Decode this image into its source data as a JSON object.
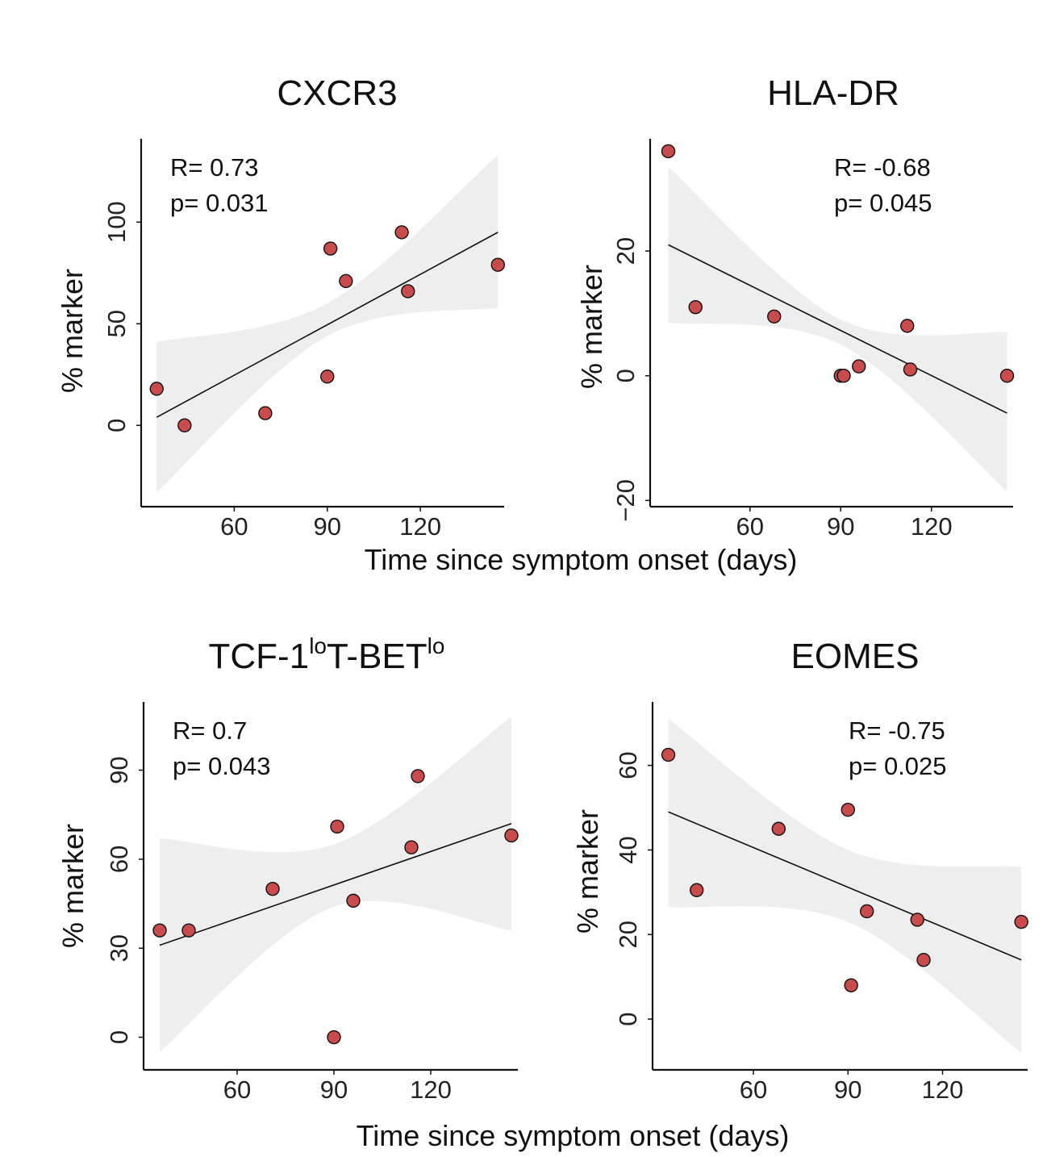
{
  "xlabel": "Time since symptom onset (days)",
  "chart_data": [
    {
      "type": "scatter",
      "title": "CXCR3",
      "title_sup": [],
      "ylabel": "% marker",
      "annotation": [
        "R= 0.73",
        "p= 0.031"
      ],
      "annotation_side": "left",
      "xlim": [
        30,
        147
      ],
      "ylim": [
        -40,
        141
      ],
      "xticks": [
        60,
        90,
        120
      ],
      "yticks": [
        0,
        50,
        100
      ],
      "points": {
        "x": [
          35,
          44,
          70,
          90,
          91,
          96,
          114,
          116,
          145
        ],
        "y": [
          18,
          0,
          6,
          24,
          87,
          71,
          95,
          66,
          79
        ]
      },
      "fit": {
        "x": [
          35,
          145
        ],
        "y": [
          4,
          95
        ]
      },
      "band": {
        "x": [
          35,
          90,
          145
        ],
        "upper": [
          41,
          60,
          133
        ],
        "lower": [
          -33,
          44,
          58
        ]
      },
      "marker_color": "#c94b4b",
      "band_color": "#eeeeee"
    },
    {
      "type": "scatter",
      "title": "HLA-DR",
      "title_sup": [],
      "ylabel": "% marker",
      "annotation": [
        "R= -0.68",
        "p= 0.045"
      ],
      "annotation_side": "right",
      "xlim": [
        27,
        147
      ],
      "ylim": [
        -21,
        38
      ],
      "xticks": [
        60,
        90,
        120
      ],
      "yticks": [
        20,
        0,
        -20
      ],
      "ytick_labels": [
        "20",
        "0",
        "−20"
      ],
      "points": {
        "x": [
          33,
          42,
          68,
          90,
          91,
          96,
          112,
          113,
          145
        ],
        "y": [
          36,
          11,
          9.5,
          0,
          0,
          1.5,
          8,
          1,
          0
        ]
      },
      "fit": {
        "x": [
          33,
          145
        ],
        "y": [
          21,
          -6
        ]
      },
      "band": {
        "x": [
          33,
          90,
          145
        ],
        "upper": [
          33.5,
          9,
          7
        ],
        "lower": [
          8.5,
          5,
          -18.5
        ]
      },
      "marker_color": "#c94b4b",
      "band_color": "#eeeeee"
    },
    {
      "type": "scatter",
      "title": "TCF-1",
      "title_sup": [
        [
          "lo",
          "T-BET"
        ],
        [
          "lo",
          ""
        ]
      ],
      "ylabel": "% marker",
      "annotation": [
        "R= 0.7",
        "p= 0.043"
      ],
      "annotation_side": "left",
      "xlim": [
        31,
        147
      ],
      "ylim": [
        -11,
        113
      ],
      "xticks": [
        60,
        90,
        120
      ],
      "yticks": [
        0,
        30,
        60,
        90
      ],
      "points": {
        "x": [
          36,
          45,
          71,
          90,
          91,
          96,
          114,
          116,
          145
        ],
        "y": [
          36,
          36,
          50,
          0,
          71,
          46,
          64,
          88,
          68
        ]
      },
      "fit": {
        "x": [
          36,
          145
        ],
        "y": [
          31,
          72
        ]
      },
      "band": {
        "x": [
          36,
          90,
          145
        ],
        "upper": [
          67,
          65,
          108
        ],
        "lower": [
          -5,
          44,
          36
        ]
      },
      "marker_color": "#c94b4b",
      "band_color": "#eeeeee"
    },
    {
      "type": "scatter",
      "title": "EOMES",
      "title_sup": [],
      "ylabel": "% marker",
      "annotation": [
        "R= -0.75",
        "p= 0.025"
      ],
      "annotation_side": "right",
      "xlim": [
        28,
        147
      ],
      "ylim": [
        -12,
        75
      ],
      "xticks": [
        60,
        90,
        120
      ],
      "yticks": [
        0,
        20,
        40,
        60
      ],
      "points": {
        "x": [
          33,
          42,
          68,
          90,
          91,
          96,
          112,
          114,
          145
        ],
        "y": [
          62.5,
          30.5,
          45,
          49.5,
          8,
          25.5,
          23.5,
          14,
          23
        ]
      },
      "fit": {
        "x": [
          33,
          145
        ],
        "y": [
          49,
          14
        ]
      },
      "band": {
        "x": [
          33,
          90,
          145
        ],
        "upper": [
          71,
          40,
          36
        ],
        "lower": [
          26.5,
          23,
          -8
        ]
      },
      "marker_color": "#c94b4b",
      "band_color": "#eeeeee"
    }
  ]
}
